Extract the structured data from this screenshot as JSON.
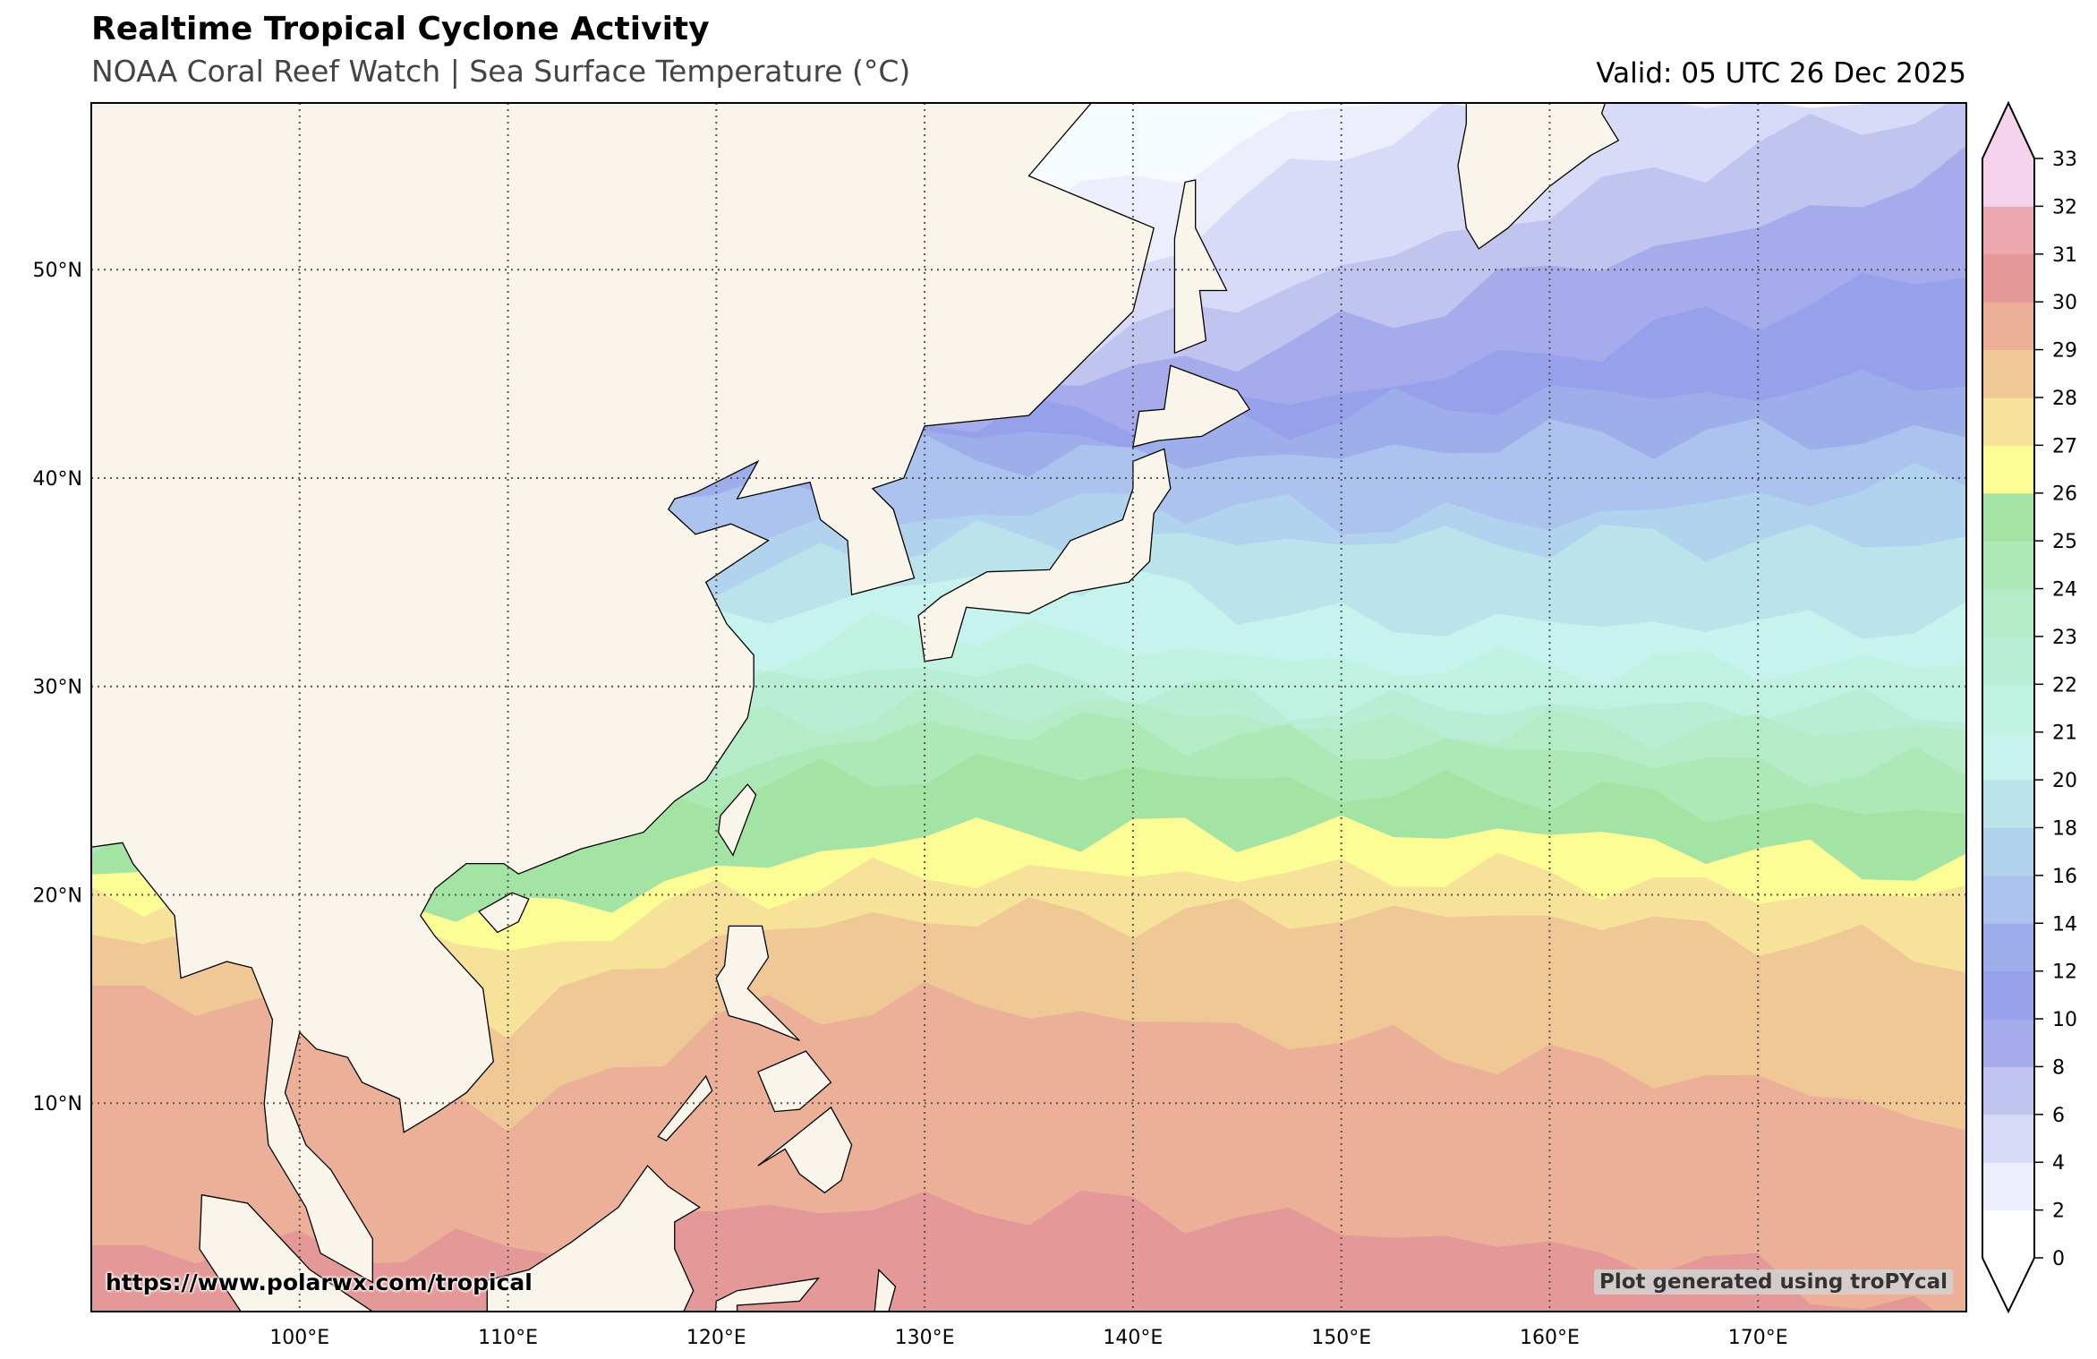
{
  "header": {
    "title": "Realtime Tropical Cyclone Activity",
    "subtitle": "NOAA Coral Reef Watch | Sea Surface Temperature (°C)",
    "valid": "Valid: 05 UTC 26 Dec 2025"
  },
  "map": {
    "projection": "plate-carree",
    "extent": {
      "lon": [
        90,
        180
      ],
      "lat": [
        0,
        58
      ]
    },
    "lat_ticks": [
      "10°N",
      "20°N",
      "30°N",
      "40°N",
      "50°N"
    ],
    "lon_ticks": [
      "100°E",
      "110°E",
      "120°E",
      "130°E",
      "140°E",
      "150°E",
      "160°E",
      "170°E"
    ],
    "gridlines": "dotted",
    "land_color": "#faf5ea",
    "ocean_cold_color": "#f5fbff"
  },
  "colorbar": {
    "ticks": [
      "0",
      "2",
      "4",
      "6",
      "8",
      "10",
      "12",
      "14",
      "16",
      "18",
      "20",
      "21",
      "22",
      "23",
      "24",
      "25",
      "26",
      "27",
      "28",
      "29",
      "30",
      "31",
      "32",
      "33"
    ],
    "colors": [
      "#ffffff",
      "#eceffb",
      "#d8dbf7",
      "#c2c4f0",
      "#a5abeb",
      "#97a0ea",
      "#9daeea",
      "#abc3ee",
      "#b1d3ee",
      "#bbe3ec",
      "#c6f3ee",
      "#c0f2e2",
      "#b8eed6",
      "#b3ecc6",
      "#ade9b6",
      "#a3e3a3",
      "#fdfd96",
      "#f6e298",
      "#f0c896",
      "#ecb098",
      "#e49898",
      "#eca8ae",
      "#f5d3ec"
    ],
    "extend_low_color": "#ffffff",
    "extend_high_color": "#f5d3ec"
  },
  "footer": {
    "credit": "https://www.polarwx.com/tropical",
    "generated": "Plot generated using troPYcal"
  }
}
